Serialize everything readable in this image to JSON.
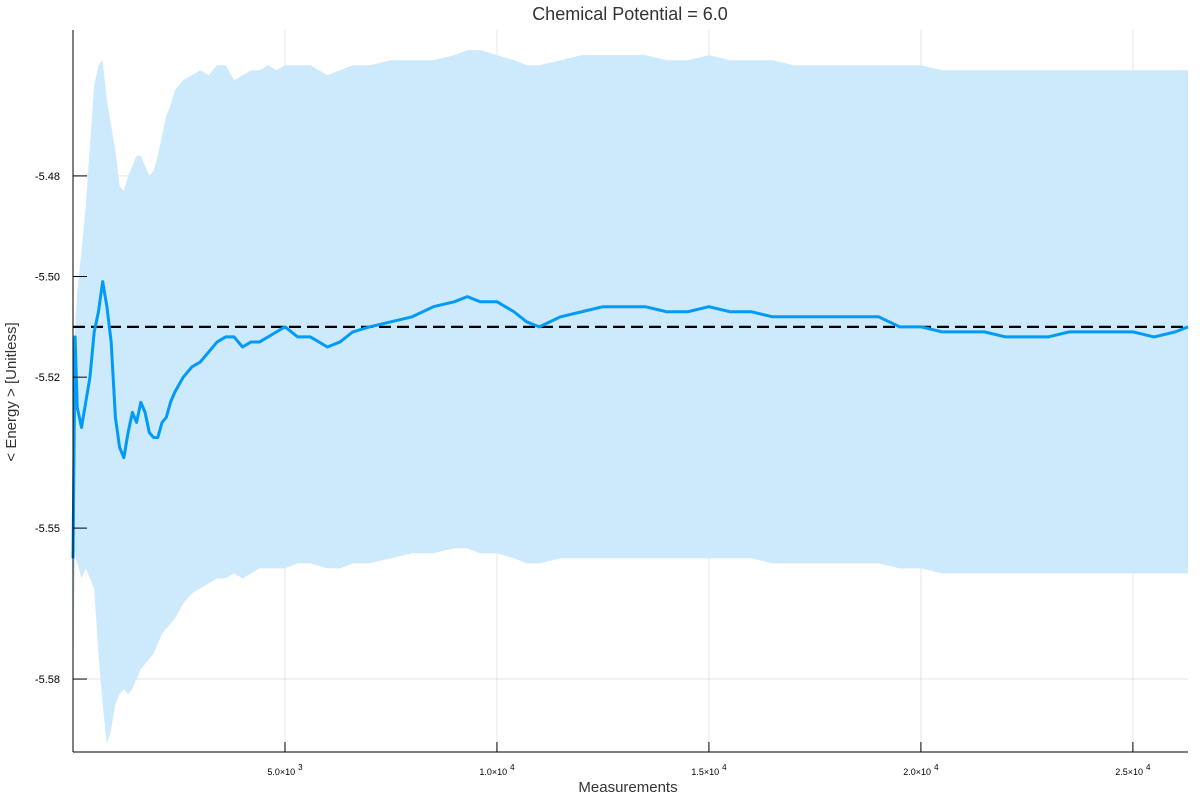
{
  "chart_data": {
    "type": "line",
    "title": "Chemical Potential = 6.0",
    "xlabel": "Measurements",
    "ylabel": "< Energy > [Unitless]",
    "xlim": [
      0,
      26300
    ],
    "ylim": [
      -5.5945,
      -5.451
    ],
    "grid": true,
    "legend": "none",
    "x_ticks": [
      {
        "value": 5000,
        "mantissa": "5.0×10",
        "exp": "3"
      },
      {
        "value": 10000,
        "mantissa": "1.0×10",
        "exp": "4"
      },
      {
        "value": 15000,
        "mantissa": "1.5×10",
        "exp": "4"
      },
      {
        "value": 20000,
        "mantissa": "2.0×10",
        "exp": "4"
      },
      {
        "value": 25000,
        "mantissa": "2.5×10",
        "exp": "4"
      }
    ],
    "y_ticks": [
      {
        "value": -5.48,
        "label": "-5.48"
      },
      {
        "value": -5.5,
        "label": "-5.50"
      },
      {
        "value": -5.52,
        "label": "-5.52"
      },
      {
        "value": -5.55,
        "label": "-5.55"
      },
      {
        "value": -5.58,
        "label": "-5.58"
      }
    ],
    "reference_line": {
      "y": -5.51,
      "style": "dashed",
      "color": "#000000"
    },
    "series": [
      {
        "color": "#009af9",
        "band_color": "#cdeafc",
        "x": [
          0,
          50,
          100,
          200,
          300,
          400,
          500,
          600,
          700,
          800,
          900,
          1000,
          1100,
          1200,
          1300,
          1400,
          1500,
          1600,
          1700,
          1800,
          1900,
          2000,
          2100,
          2200,
          2300,
          2400,
          2600,
          2800,
          3000,
          3200,
          3400,
          3600,
          3800,
          4000,
          4200,
          4400,
          4600,
          4800,
          5000,
          5300,
          5600,
          6000,
          6300,
          6600,
          7000,
          7500,
          8000,
          8500,
          9000,
          9300,
          9600,
          10000,
          10400,
          10700,
          11000,
          11500,
          12000,
          12500,
          13000,
          13500,
          14000,
          14500,
          15000,
          15500,
          16000,
          16500,
          17000,
          17500,
          18000,
          18500,
          19000,
          19500,
          20000,
          20500,
          21000,
          21500,
          22000,
          22500,
          23000,
          23500,
          24000,
          24500,
          25000,
          25500,
          26000,
          26300
        ],
        "y": [
          -5.556,
          -5.512,
          -5.526,
          -5.53,
          -5.525,
          -5.52,
          -5.511,
          -5.507,
          -5.501,
          -5.506,
          -5.513,
          -5.528,
          -5.534,
          -5.536,
          -5.531,
          -5.527,
          -5.529,
          -5.525,
          -5.527,
          -5.531,
          -5.532,
          -5.532,
          -5.529,
          -5.528,
          -5.525,
          -5.523,
          -5.52,
          -5.518,
          -5.517,
          -5.515,
          -5.513,
          -5.512,
          -5.512,
          -5.514,
          -5.513,
          -5.513,
          -5.512,
          -5.511,
          -5.51,
          -5.512,
          -5.512,
          -5.514,
          -5.513,
          -5.511,
          -5.51,
          -5.509,
          -5.508,
          -5.506,
          -5.505,
          -5.504,
          -5.505,
          -5.505,
          -5.507,
          -5.509,
          -5.51,
          -5.508,
          -5.507,
          -5.506,
          -5.506,
          -5.506,
          -5.507,
          -5.507,
          -5.506,
          -5.507,
          -5.507,
          -5.508,
          -5.508,
          -5.508,
          -5.508,
          -5.508,
          -5.508,
          -5.51,
          -5.51,
          -5.511,
          -5.511,
          -5.511,
          -5.512,
          -5.512,
          -5.512,
          -5.511,
          -5.511,
          -5.511,
          -5.511,
          -5.512,
          -5.511,
          -5.51
        ],
        "upper": [
          -5.532,
          -5.51,
          -5.503,
          -5.495,
          -5.486,
          -5.474,
          -5.462,
          -5.458,
          -5.457,
          -5.465,
          -5.47,
          -5.475,
          -5.482,
          -5.483,
          -5.48,
          -5.478,
          -5.476,
          -5.476,
          -5.478,
          -5.48,
          -5.479,
          -5.476,
          -5.472,
          -5.468,
          -5.466,
          -5.463,
          -5.461,
          -5.46,
          -5.459,
          -5.46,
          -5.458,
          -5.458,
          -5.461,
          -5.46,
          -5.459,
          -5.459,
          -5.458,
          -5.459,
          -5.458,
          -5.458,
          -5.458,
          -5.46,
          -5.459,
          -5.458,
          -5.458,
          -5.457,
          -5.457,
          -5.457,
          -5.456,
          -5.455,
          -5.455,
          -5.456,
          -5.457,
          -5.458,
          -5.458,
          -5.457,
          -5.456,
          -5.456,
          -5.456,
          -5.456,
          -5.457,
          -5.457,
          -5.456,
          -5.457,
          -5.457,
          -5.457,
          -5.458,
          -5.458,
          -5.458,
          -5.458,
          -5.458,
          -5.458,
          -5.458,
          -5.459,
          -5.459,
          -5.459,
          -5.459,
          -5.459,
          -5.459,
          -5.459,
          -5.459,
          -5.459,
          -5.459,
          -5.459,
          -5.459,
          -5.459
        ],
        "lower": [
          -5.58,
          -5.555,
          -5.557,
          -5.56,
          -5.558,
          -5.56,
          -5.562,
          -5.575,
          -5.585,
          -5.593,
          -5.59,
          -5.585,
          -5.583,
          -5.582,
          -5.583,
          -5.582,
          -5.58,
          -5.578,
          -5.577,
          -5.576,
          -5.575,
          -5.573,
          -5.571,
          -5.57,
          -5.569,
          -5.568,
          -5.565,
          -5.563,
          -5.562,
          -5.561,
          -5.56,
          -5.56,
          -5.559,
          -5.56,
          -5.559,
          -5.558,
          -5.558,
          -5.558,
          -5.558,
          -5.557,
          -5.557,
          -5.558,
          -5.558,
          -5.557,
          -5.557,
          -5.556,
          -5.555,
          -5.555,
          -5.554,
          -5.554,
          -5.555,
          -5.555,
          -5.556,
          -5.557,
          -5.557,
          -5.556,
          -5.556,
          -5.556,
          -5.556,
          -5.556,
          -5.556,
          -5.556,
          -5.556,
          -5.556,
          -5.556,
          -5.557,
          -5.557,
          -5.557,
          -5.557,
          -5.557,
          -5.557,
          -5.558,
          -5.558,
          -5.559,
          -5.559,
          -5.559,
          -5.559,
          -5.559,
          -5.559,
          -5.559,
          -5.559,
          -5.559,
          -5.559,
          -5.559,
          -5.559,
          -5.559
        ]
      }
    ]
  }
}
